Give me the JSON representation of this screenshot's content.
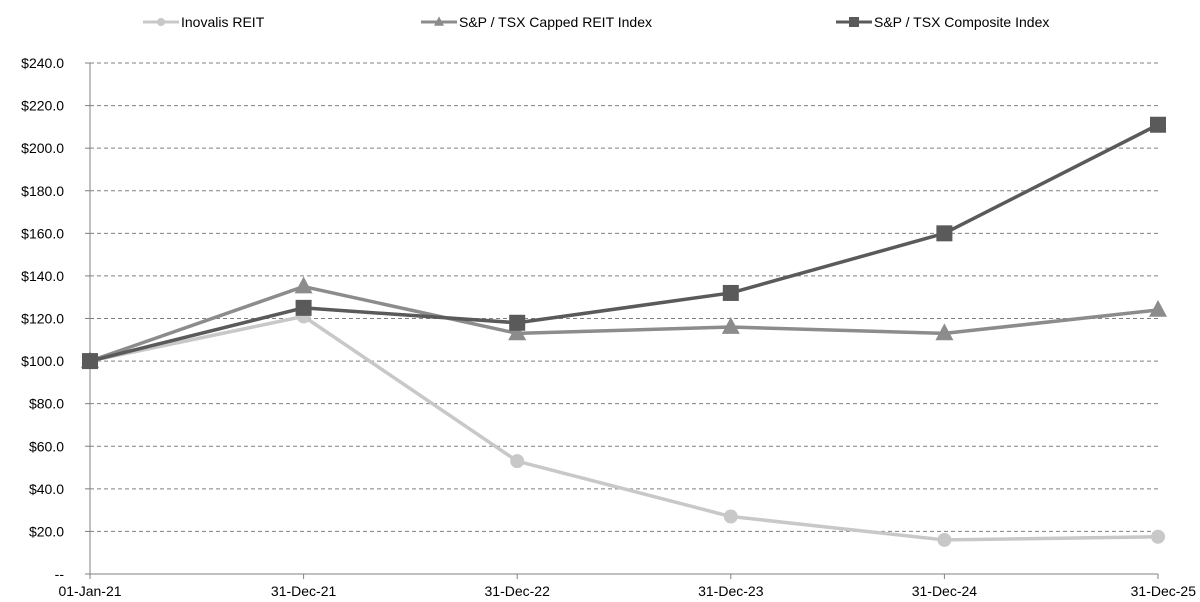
{
  "chart_data": {
    "type": "line",
    "x": [
      "01-Jan-21",
      "31-Dec-21",
      "31-Dec-22",
      "31-Dec-23",
      "31-Dec-24",
      "31-Dec-25"
    ],
    "y_ticks": [
      "--",
      "$20.0",
      "$40.0",
      "$60.0",
      "$80.0",
      "$100.0",
      "$120.0",
      "$140.0",
      "$160.0",
      "$180.0",
      "$200.0",
      "$220.0",
      "$240.0"
    ],
    "ylim": [
      0,
      240
    ],
    "grid": true,
    "legend_position": "top",
    "series": [
      {
        "name": "Inovalis REIT",
        "values": [
          100,
          121,
          53,
          27,
          16,
          17.5
        ],
        "color": "#c8c8c8",
        "marker": "circle"
      },
      {
        "name": "S&P / TSX Capped REIT Index",
        "values": [
          100,
          135,
          113,
          116,
          113,
          124
        ],
        "color": "#8c8c8c",
        "marker": "triangle"
      },
      {
        "name": "S&P / TSX Composite Index",
        "values": [
          100,
          125,
          118,
          132,
          160,
          211
        ],
        "color": "#5a5a5a",
        "marker": "square"
      }
    ]
  }
}
